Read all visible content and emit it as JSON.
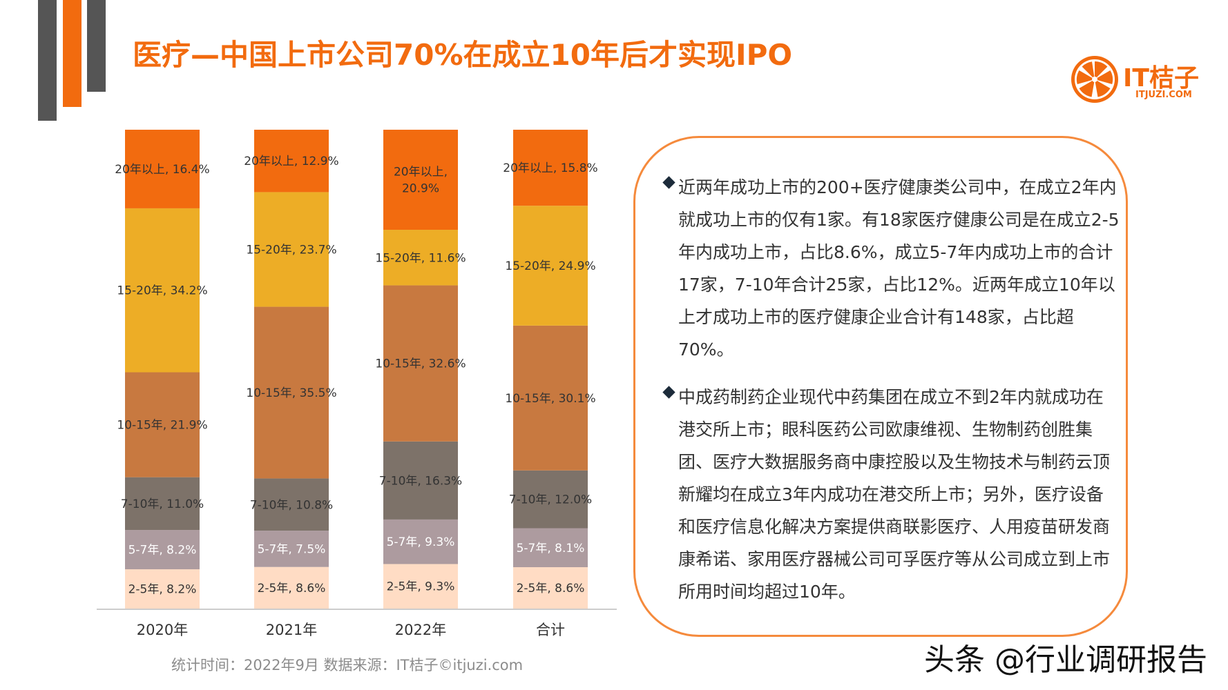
{
  "title": "医疗—中国上市公司70%在成立10年后才实现IPO",
  "logo": {
    "text": "IT桔子",
    "sub": "ITJUZI.COM",
    "icon": "orange-slice-icon"
  },
  "colors": {
    "accent": "#f26b0f",
    "segments": [
      "#ffdcc4",
      "#ad9b9f",
      "#7d7269",
      "#c87940",
      "#edad26",
      "#f26b0f"
    ]
  },
  "chart_data": {
    "type": "bar",
    "stacked": true,
    "normalized": true,
    "categories": [
      "2020年",
      "2021年",
      "2022年",
      "合计"
    ],
    "series": [
      {
        "name": "2-5年",
        "values": [
          8.2,
          8.6,
          9.3,
          8.6
        ],
        "labels": [
          "2-5年, 8.2%",
          "2-5年, 8.6%",
          "2-5年, 9.3%",
          "2-5年, 8.6%"
        ]
      },
      {
        "name": "5-7年",
        "values": [
          8.2,
          7.5,
          9.3,
          8.1
        ],
        "labels": [
          "5-7年, 8.2%",
          "5-7年, 7.5%",
          "5-7年, 9.3%",
          "5-7年, 8.1%"
        ]
      },
      {
        "name": "7-10年",
        "values": [
          11.0,
          10.8,
          16.3,
          12.0
        ],
        "labels": [
          "7-10年, 11.0%",
          "7-10年, 10.8%",
          "7-10年, 16.3%",
          "7-10年, 12.0%"
        ]
      },
      {
        "name": "10-15年",
        "values": [
          21.9,
          35.5,
          32.6,
          30.1
        ],
        "labels": [
          "10-15年, 21.9%",
          "10-15年, 35.5%",
          "10-15年, 32.6%",
          "10-15年, 30.1%"
        ]
      },
      {
        "name": "15-20年",
        "values": [
          34.2,
          23.7,
          11.6,
          24.9
        ],
        "labels": [
          "15-20年, 34.2%",
          "15-20年, 23.7%",
          "15-20年, 11.6%",
          "15-20年, 24.9%"
        ]
      },
      {
        "name": "20年以上",
        "values": [
          16.4,
          12.9,
          20.9,
          15.8
        ],
        "labels": [
          "20年以上, 16.4%",
          "20年以上, 12.9%",
          "20年以上,\n20.9%",
          "20年以上, 15.8%"
        ]
      }
    ],
    "ylim": [
      0,
      100
    ],
    "grid": false,
    "legend": "none"
  },
  "panel": {
    "bullet1": "近两年成功上市的200+医疗健康类公司中，在成立2年内就成功上市的仅有1家。有18家医疗健康公司是在成立2-5年内成功上市，占比8.6%，成立5-7年内成功上市的合计17家，7-10年合计25家，占比12%。近两年成立10年以上才成功上市的医疗健康企业合计有148家，占比超70%。",
    "bullet2": "中成药制药企业现代中药集团在成立不到2年内就成功在港交所上市；眼科医药公司欧康维视、生物制药创胜集团、医疗大数据服务商中康控股以及生物技术与制药云顶新耀均在成立3年内成功在港交所上市；另外，医疗设备和医疗信息化解决方案提供商联影医疗、人用疫苗研发商康希诺、家用医疗器械公司可孚医疗等从公司成立到上市所用时间均超过10年。"
  },
  "footer": "统计时间：2022年9月  数据来源：IT桔子©itjuzi.com",
  "watermark": "头条 @行业调研报告"
}
